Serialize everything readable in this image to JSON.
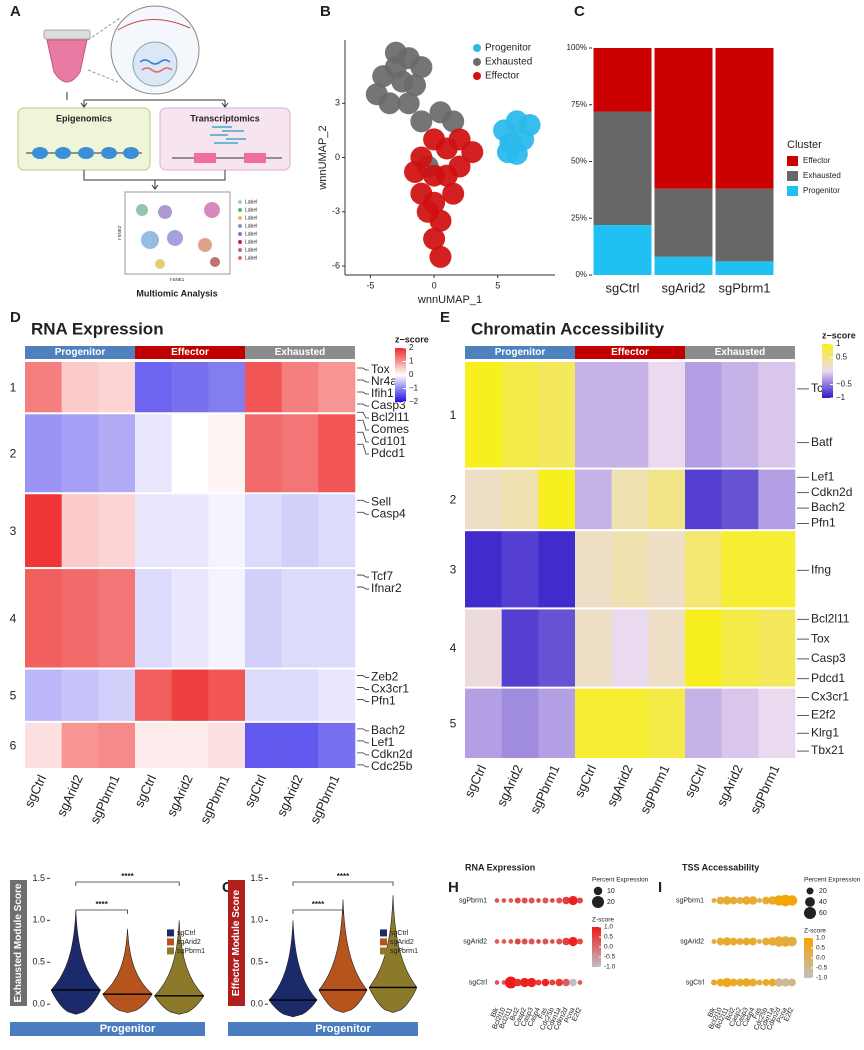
{
  "figure": {
    "panel_labels": [
      "A",
      "B",
      "C",
      "D",
      "E",
      "F",
      "G",
      "H",
      "I"
    ],
    "schematic": {
      "epigenomics": "Epigenomics",
      "transcriptomics": "Transcriptomics",
      "caption": "Multiomic Analysis",
      "tsne_x": "t-SNE1",
      "tsne_y": "t-SNE2",
      "legend": [
        "Label",
        "Label",
        "Label",
        "Label",
        "Label",
        "Label",
        "Label",
        "Label"
      ]
    }
  },
  "chart_data": [
    {
      "type": "scatter",
      "xlabel": "wnnUMAP_1",
      "ylabel": "wnnUMAP_2",
      "xlim": [
        -7,
        9.5
      ],
      "ylim": [
        -6.5,
        6.5
      ],
      "xticks": [
        -5,
        0,
        5
      ],
      "yticks": [
        -6,
        -3,
        0,
        3
      ],
      "series": [
        {
          "name": "Progenitor",
          "color": "#29b9ec",
          "x": [
            5.5,
            6.5,
            7,
            6,
            7.5,
            6.5,
            5.8
          ],
          "y": [
            1.5,
            2,
            1,
            0.8,
            1.8,
            0.2,
            0.3
          ]
        },
        {
          "name": "Exhausted",
          "color": "#6b6b6b",
          "x": [
            -4,
            -3,
            -2,
            -1.5,
            -3.5,
            -2,
            -0.5,
            0.5,
            -1,
            1.5,
            -4.5,
            -2.5,
            -3,
            -1
          ],
          "y": [
            4.5,
            5,
            5.5,
            4,
            3,
            3,
            -0.5,
            2.5,
            2,
            2,
            3.5,
            4.2,
            5.8,
            5
          ]
        },
        {
          "name": "Effector",
          "color": "#d01010",
          "x": [
            0,
            1,
            2,
            -1,
            0,
            1,
            2,
            -1,
            0,
            0.5,
            0,
            0.5,
            -0.5,
            1.5,
            3,
            -1.5
          ],
          "y": [
            1,
            0.5,
            1,
            0,
            -1,
            -1,
            -0.5,
            -2,
            -2.5,
            -3.5,
            -4.5,
            -5.5,
            -3,
            -2,
            0.3,
            -0.8
          ]
        }
      ]
    },
    {
      "type": "bar",
      "stacked": true,
      "legend_title": "Cluster",
      "categories": [
        "sgCtrl",
        "sgArid2",
        "sgPbrm1"
      ],
      "ylim": [
        0,
        100
      ],
      "yticks": [
        {
          "value": 0,
          "label": "0%"
        },
        {
          "value": 25,
          "label": "25%"
        },
        {
          "value": 50,
          "label": "50%"
        },
        {
          "value": 75,
          "label": "75%"
        },
        {
          "value": 100,
          "label": "100%"
        }
      ],
      "series": [
        {
          "name": "Progenitor",
          "color": "#1fc1f2",
          "values": [
            22,
            8,
            6
          ]
        },
        {
          "name": "Exhausted",
          "color": "#676767",
          "values": [
            50,
            30,
            32
          ]
        },
        {
          "name": "Effector",
          "color": "#cc0000",
          "values": [
            28,
            62,
            62
          ]
        }
      ]
    },
    {
      "type": "heatmap",
      "title": "RNA Expression",
      "groups": [
        {
          "name": "Progenitor",
          "color": "#4f81bd"
        },
        {
          "name": "Effector",
          "color": "#c00000"
        },
        {
          "name": "Exhausted",
          "color": "#8c8c8c"
        }
      ],
      "columns": [
        "sgCtrl",
        "sgArid2",
        "sgPbrm1",
        "sgCtrl",
        "sgArid2",
        "sgPbrm1",
        "sgCtrl",
        "sgArid2",
        "sgPbrm1"
      ],
      "row_clusters": [
        "1",
        "2",
        "3",
        "4",
        "5",
        "6"
      ],
      "values": [
        [
          1.2,
          0.5,
          0.4,
          -1.3,
          -1.2,
          -1.1,
          1.6,
          1.2,
          1.0
        ],
        [
          -0.9,
          -0.8,
          -0.7,
          -0.2,
          0,
          0.1,
          1.4,
          1.3,
          1.6
        ],
        [
          1.9,
          0.5,
          0.4,
          -0.2,
          -0.2,
          -0.1,
          -0.3,
          -0.4,
          -0.3
        ],
        [
          1.5,
          1.4,
          1.3,
          -0.3,
          -0.2,
          -0.1,
          -0.4,
          -0.3,
          -0.3
        ],
        [
          -0.6,
          -0.5,
          -0.4,
          1.5,
          1.8,
          1.6,
          -0.3,
          -0.3,
          -0.2
        ],
        [
          0.3,
          1.0,
          1.1,
          0.2,
          0.2,
          0.3,
          -1.4,
          -1.4,
          -1.2
        ]
      ],
      "genes": [
        [
          "Tox",
          "Nr4a2",
          "Ifih1",
          "Casp3",
          "Bcl2l11"
        ],
        [
          "Comes",
          "Cd101",
          "Pdcd1"
        ],
        [
          "Sell",
          "Casp4"
        ],
        [
          "Tcf7",
          "Ifnar2"
        ],
        [
          "Zeb2",
          "Cx3cr1",
          "Pfn1"
        ],
        [
          "Bach2",
          "Lef1",
          "Cdkn2d",
          "Cdc25b"
        ]
      ],
      "colors": [
        "#1f10e6",
        "#ffffff",
        "#ee2a2a"
      ],
      "zlim": [
        -2,
        2
      ],
      "zlabel": "z−score",
      "zticks": [
        2,
        1,
        0,
        {
          "value": -1,
          "label": "−1"
        },
        {
          "value": -2,
          "label": "−2"
        }
      ]
    },
    {
      "type": "heatmap",
      "title": "Chromatin Accessibility",
      "groups": [
        {
          "name": "Progenitor",
          "color": "#4f81bd"
        },
        {
          "name": "Effector",
          "color": "#c00000"
        },
        {
          "name": "Exhausted",
          "color": "#8c8c8c"
        }
      ],
      "columns": [
        "sgCtrl",
        "sgArid2",
        "sgPbrm1",
        "sgCtrl",
        "sgArid2",
        "sgPbrm1",
        "sgCtrl",
        "sgArid2",
        "sgPbrm1"
      ],
      "row_clusters": [
        "1",
        "2",
        "3",
        "4",
        "5"
      ],
      "values": [
        [
          1,
          0.8,
          0.7,
          -0.2,
          -0.2,
          0,
          -0.3,
          -0.2,
          -0.1
        ],
        [
          0.2,
          0.3,
          1,
          -0.2,
          0.3,
          0.5,
          -0.8,
          -0.7,
          -0.3
        ],
        [
          -0.9,
          -0.8,
          -0.9,
          0.2,
          0.3,
          0.2,
          0.6,
          0.9,
          0.9
        ],
        [
          0.1,
          -0.8,
          -0.7,
          0.2,
          0,
          0.2,
          1,
          0.8,
          0.7
        ],
        [
          -0.3,
          -0.4,
          -0.3,
          0.9,
          0.9,
          0.8,
          -0.2,
          -0.1,
          0
        ]
      ],
      "genes": [
        [
          "Tcf7",
          "Batf"
        ],
        [
          "Lef1",
          "Cdkn2d",
          "Bach2",
          "Pfn1"
        ],
        [
          "Ifng"
        ],
        [
          "Bcl2l11",
          "Tox",
          "Casp3",
          "Pdcd1"
        ],
        [
          "Cx3cr1",
          "E2f2",
          "Klrg1",
          "Tbx21"
        ]
      ],
      "colors": [
        "#2f18c8",
        "#ebd9ef",
        "#f8f01e"
      ],
      "zlim": [
        -1,
        1
      ],
      "zlabel": "z−score",
      "zticks": [
        1,
        0.5,
        {
          "value": -0.5,
          "label": "−0.5"
        },
        {
          "value": -1,
          "label": "−1"
        }
      ]
    },
    {
      "type": "violin",
      "ylabel": "Exhausted Module Score",
      "xlabel": "Progenitor",
      "ylabel_color": "#6e6e6e",
      "xlabel_color": "#4a7cc0",
      "ylim": [
        -0.2,
        1.6
      ],
      "yticks": [
        {
          "value": 0,
          "label": "0.0"
        },
        0.5,
        {
          "value": 1,
          "label": "1.0"
        },
        1.5
      ],
      "significance": [
        "****",
        "****"
      ],
      "series": [
        {
          "name": "sgCtrl",
          "color": "#1b2a6b",
          "min": -0.12,
          "max": 1.12,
          "median": 0.17
        },
        {
          "name": "sgArid2",
          "color": "#b5541c",
          "min": -0.1,
          "max": 0.9,
          "median": 0.12
        },
        {
          "name": "sgPbrm1",
          "color": "#8c7a2a",
          "min": -0.12,
          "max": 1.0,
          "median": 0.1
        }
      ]
    },
    {
      "type": "violin",
      "ylabel": "Effector Module Score",
      "xlabel": "Progenitor",
      "ylabel_color": "#b01e1e",
      "xlabel_color": "#4a7cc0",
      "ylim": [
        -0.2,
        1.6
      ],
      "yticks": [
        {
          "value": 0,
          "label": "0.0"
        },
        0.5,
        {
          "value": 1,
          "label": "1.0"
        },
        1.5
      ],
      "significance": [
        "****",
        "****"
      ],
      "series": [
        {
          "name": "sgCtrl",
          "color": "#1b2a6b",
          "min": -0.15,
          "max": 1.0,
          "median": 0.05
        },
        {
          "name": "sgArid2",
          "color": "#b5541c",
          "min": -0.1,
          "max": 1.25,
          "median": 0.17
        },
        {
          "name": "sgPbrm1",
          "color": "#8c7a2a",
          "min": -0.1,
          "max": 1.3,
          "median": 0.2
        }
      ]
    },
    {
      "type": "dot",
      "title": "RNA Expression",
      "size_title": "Percent Expression",
      "size_ticks": [
        10,
        20
      ],
      "color_title": "Z-score",
      "colors": [
        "#c0c0c0",
        "#ee1b1b"
      ],
      "zlim": [
        -1,
        1
      ],
      "zticks": [
        {
          "value": 1,
          "label": "1.0"
        },
        0.5,
        {
          "value": 0,
          "label": "0.0"
        },
        -0.5,
        {
          "value": -1,
          "label": "-1.0"
        }
      ],
      "categories": [
        "Blk",
        "Bcl2l10",
        "Bcl2l11",
        "Bcl2",
        "Casp2",
        "Casp3",
        "Casp4",
        "Fas",
        "Cdc25b",
        "Cdkn1a",
        "Cdkn2d",
        "Pcna",
        "E2f2"
      ],
      "series": [
        {
          "name": "sgPbrm1",
          "values": [
            0.3,
            0.3,
            0.2,
            0.5,
            0.4,
            0.3,
            0.5,
            0.3,
            0.5,
            0.3,
            0.6,
            0.9,
            0.5
          ],
          "sizes": [
            3,
            3,
            3,
            5,
            5,
            5,
            3,
            5,
            3,
            5,
            8,
            12,
            5
          ]
        },
        {
          "name": "sgArid2",
          "values": [
            0.2,
            0.2,
            0.3,
            0.5,
            0.4,
            0.3,
            0.5,
            0.3,
            0.4,
            0.3,
            0.6,
            0.9,
            0.4
          ],
          "sizes": [
            3,
            3,
            3,
            5,
            5,
            5,
            3,
            5,
            3,
            5,
            8,
            12,
            5
          ]
        },
        {
          "name": "sgCtrl",
          "values": [
            0.3,
            0.2,
            1,
            0.8,
            0.9,
            0.9,
            0.6,
            0.9,
            0.5,
            0.6,
            0.2,
            -1,
            0.3
          ],
          "sizes": [
            3,
            3,
            20,
            8,
            12,
            12,
            5,
            8,
            5,
            8,
            8,
            8,
            3
          ]
        }
      ]
    },
    {
      "type": "dot",
      "title": "TSS Accessability",
      "size_title": "Percent Expression",
      "size_ticks": [
        20,
        40,
        60
      ],
      "color_title": "Z-score",
      "colors": [
        "#c0c0c0",
        "#f5a300"
      ],
      "zlim": [
        -1,
        1
      ],
      "zticks": [
        {
          "value": 1,
          "label": "1.0"
        },
        0.5,
        {
          "value": 0,
          "label": "0.0"
        },
        -0.5,
        {
          "value": -1,
          "label": "-1.0"
        }
      ],
      "categories": [
        "Blk",
        "Bcl2l10",
        "Bcl2l11",
        "Bcl2",
        "Casp2",
        "Casp3",
        "Casp4",
        "Fas",
        "Cdc25b",
        "Cdkn1a",
        "Cdkn2d",
        "Pcna",
        "E2f2"
      ],
      "series": [
        {
          "name": "sgPbrm1",
          "values": [
            0.3,
            0.4,
            0.6,
            0.5,
            0.4,
            0.6,
            0.5,
            0.2,
            0.5,
            0.6,
            0.9,
            1,
            0.9
          ],
          "sizes": [
            10,
            25,
            30,
            25,
            20,
            30,
            30,
            10,
            25,
            30,
            45,
            55,
            45
          ]
        },
        {
          "name": "sgArid2",
          "values": [
            0.3,
            0.4,
            0.6,
            0.5,
            0.4,
            0.6,
            0.5,
            0.2,
            0.4,
            0.5,
            0.5,
            0.4,
            0.3
          ],
          "sizes": [
            10,
            25,
            30,
            25,
            20,
            25,
            25,
            10,
            25,
            30,
            45,
            45,
            40
          ]
        },
        {
          "name": "sgCtrl",
          "values": [
            0.7,
            0.6,
            0.8,
            0.6,
            0.5,
            0.7,
            0.6,
            0.4,
            0.6,
            0.6,
            -0.5,
            -0.6,
            -0.3
          ],
          "sizes": [
            15,
            25,
            35,
            25,
            25,
            30,
            25,
            15,
            20,
            25,
            30,
            30,
            25
          ]
        }
      ]
    }
  ]
}
